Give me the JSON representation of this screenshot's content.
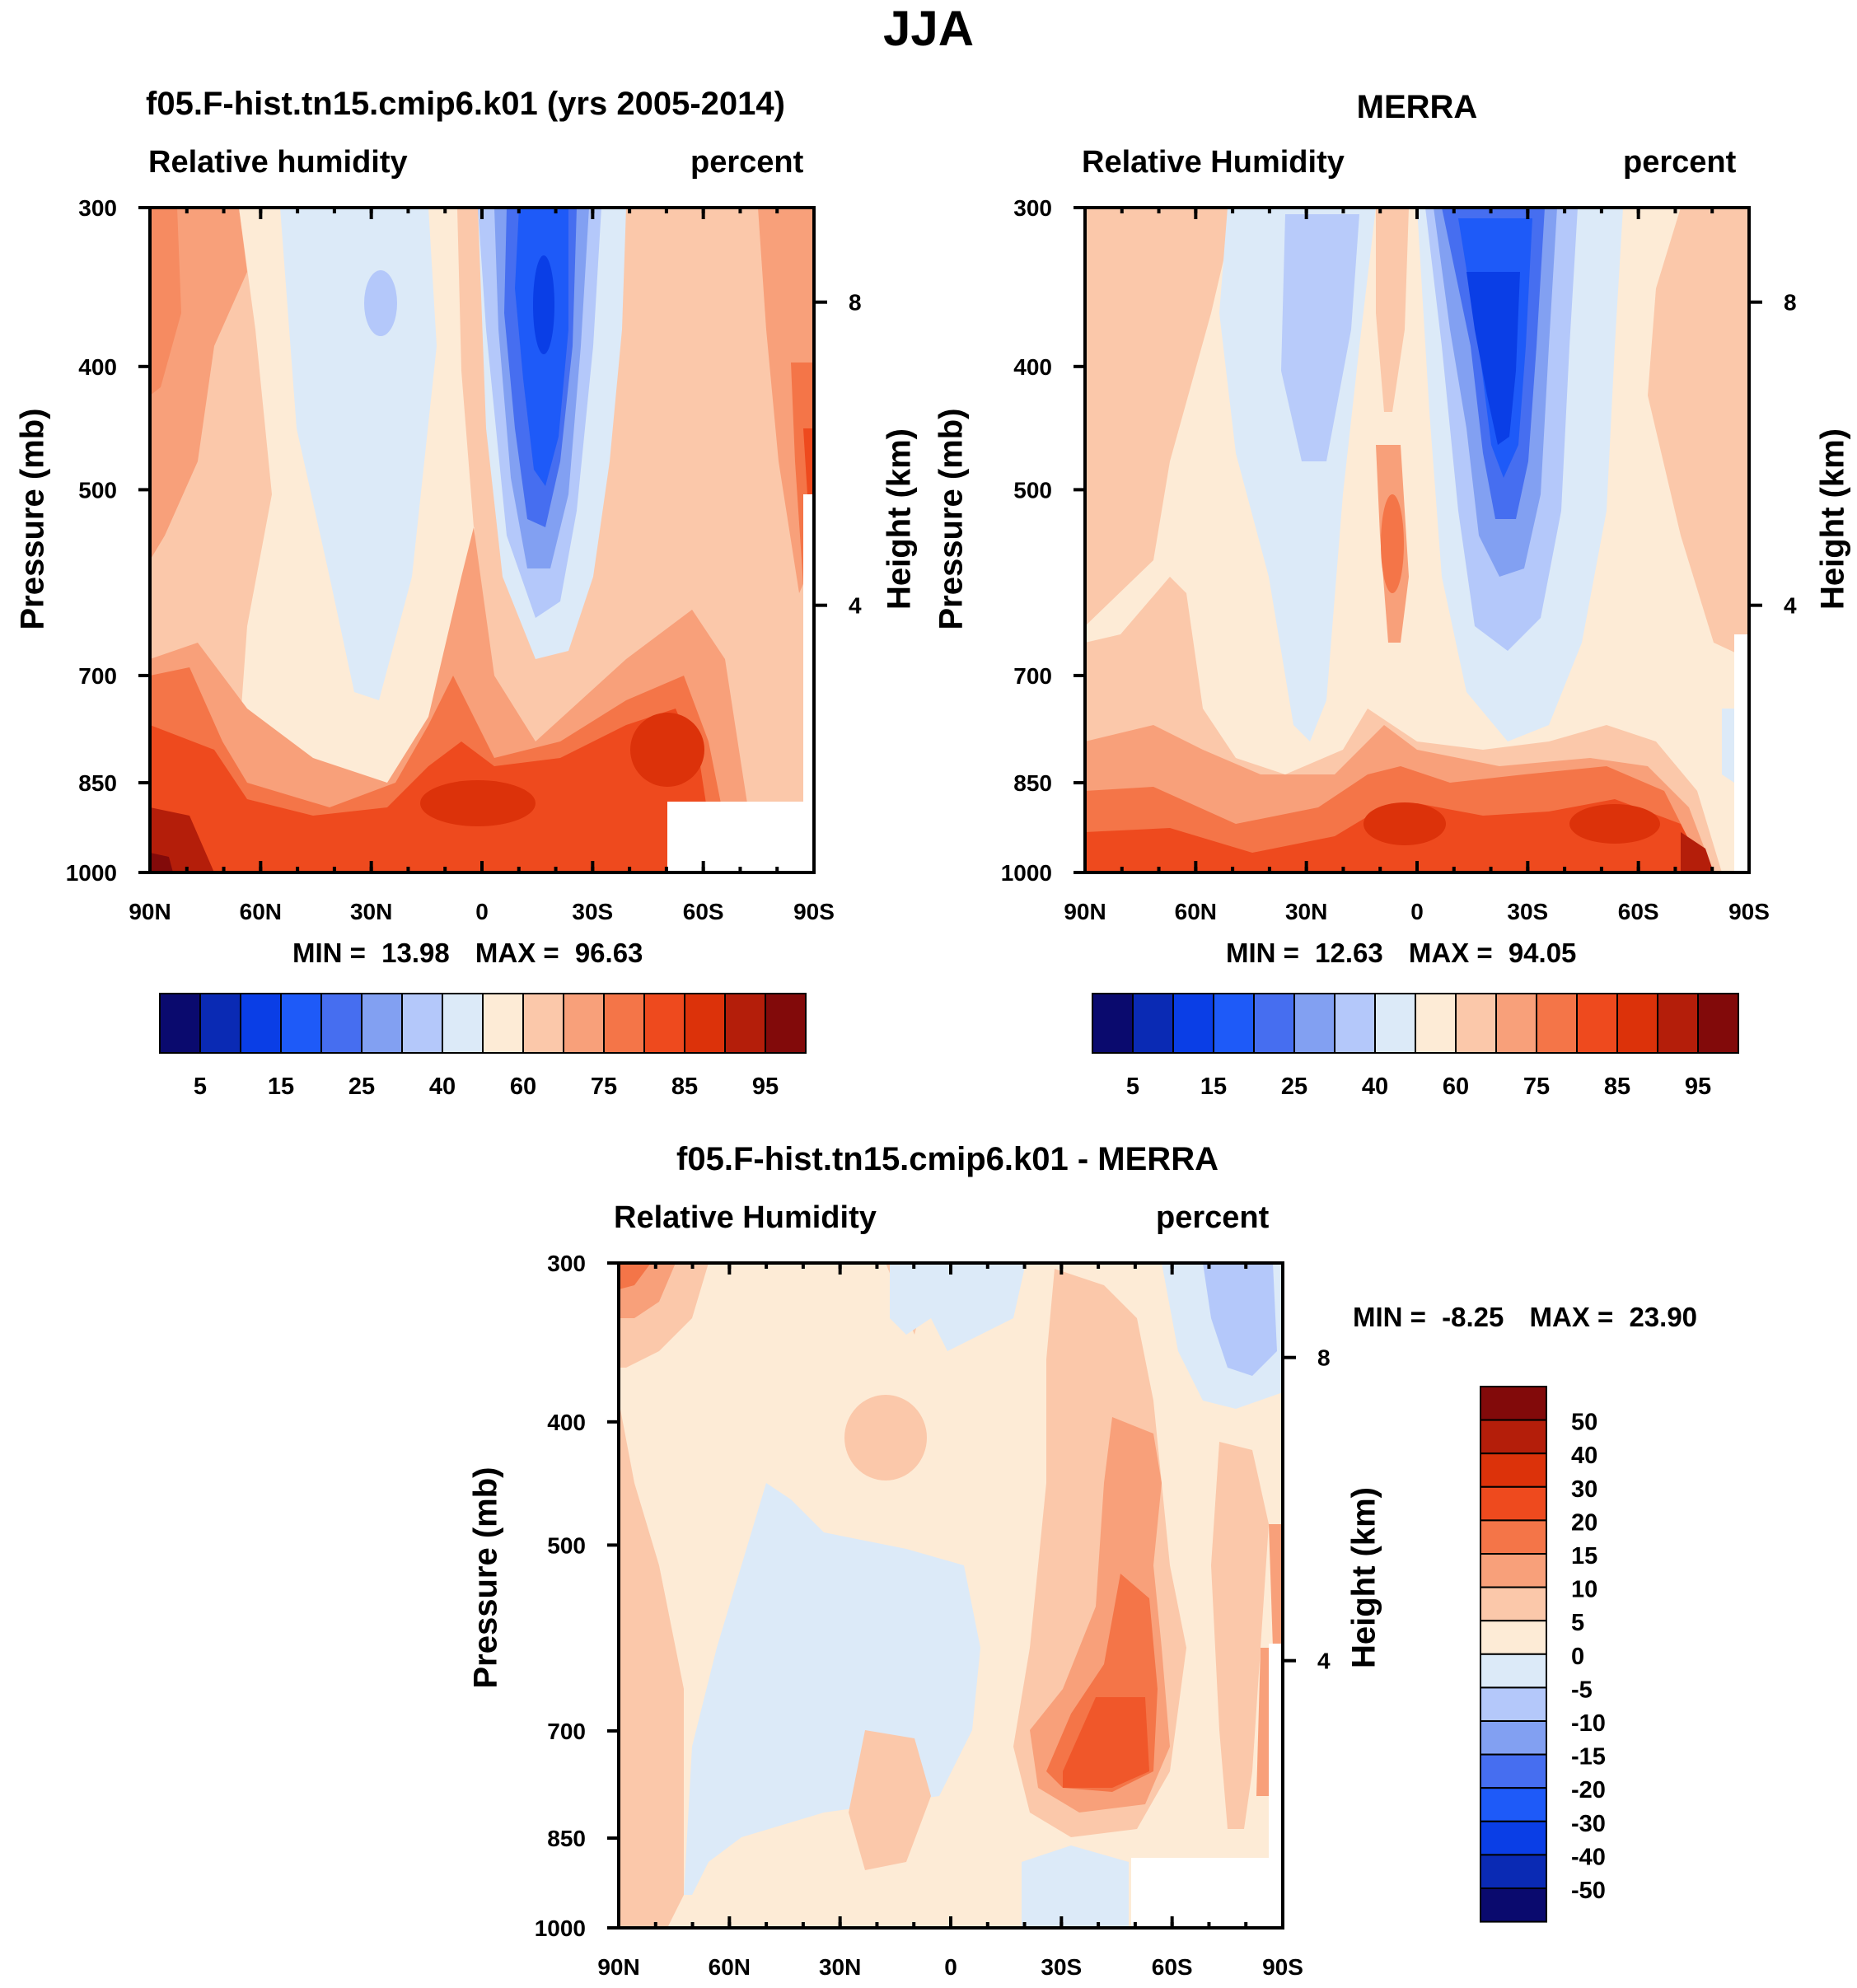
{
  "page_title": "JJA",
  "chart_data": [
    {
      "type": "heatmap",
      "title": "f05.F-hist.tn15.cmip6.k01 (yrs 2005-2014)",
      "variable": "Relative humidity",
      "units": "percent",
      "ylabel": "Pressure (mb)",
      "y2label": "Height (km)",
      "x_ticks": [
        "90N",
        "60N",
        "30N",
        "0",
        "30S",
        "60S",
        "90S"
      ],
      "y_ticks": [
        "300",
        "400",
        "500",
        "700",
        "850",
        "1000"
      ],
      "y2_ticks": [
        "8",
        "4"
      ],
      "x_range": [
        90,
        -90
      ],
      "y_range": [
        1000,
        300
      ],
      "y_scale": "log",
      "min_label": "MIN =",
      "min_value": "13.98",
      "max_label": "MAX =",
      "max_value": "96.63",
      "colorbar_labels": [
        "5",
        "15",
        "25",
        "40",
        "60",
        "75",
        "85",
        "95"
      ],
      "colorbar_colors": [
        "#0a0a6e",
        "#0a2ab4",
        "#0a3ee6",
        "#1e5af8",
        "#466ef0",
        "#82a0f2",
        "#b4c8fa",
        "#dceaf8",
        "#fdebd6",
        "#fbc8aa",
        "#f8a07a",
        "#f47548",
        "#ee4a1e",
        "#dc320a",
        "#b41e0a",
        "#820a0a"
      ]
    },
    {
      "type": "heatmap",
      "title": "MERRA",
      "variable": "Relative Humidity",
      "units": "percent",
      "ylabel": "Pressure (mb)",
      "y2label": "Height (km)",
      "x_ticks": [
        "90N",
        "60N",
        "30N",
        "0",
        "30S",
        "60S",
        "90S"
      ],
      "y_ticks": [
        "300",
        "400",
        "500",
        "700",
        "850",
        "1000"
      ],
      "y2_ticks": [
        "8",
        "4"
      ],
      "x_range": [
        90,
        -90
      ],
      "y_range": [
        1000,
        300
      ],
      "y_scale": "log",
      "min_label": "MIN =",
      "min_value": "12.63",
      "max_label": "MAX =",
      "max_value": "94.05",
      "colorbar_labels": [
        "5",
        "15",
        "25",
        "40",
        "60",
        "75",
        "85",
        "95"
      ],
      "colorbar_colors": [
        "#0a0a6e",
        "#0a2ab4",
        "#0a3ee6",
        "#1e5af8",
        "#466ef0",
        "#82a0f2",
        "#b4c8fa",
        "#dceaf8",
        "#fdebd6",
        "#fbc8aa",
        "#f8a07a",
        "#f47548",
        "#ee4a1e",
        "#dc320a",
        "#b41e0a",
        "#820a0a"
      ]
    },
    {
      "type": "heatmap",
      "title": "f05.F-hist.tn15.cmip6.k01 - MERRA",
      "variable": "Relative Humidity",
      "units": "percent",
      "ylabel": "Pressure (mb)",
      "y2label": "Height (km)",
      "x_ticks": [
        "90N",
        "60N",
        "30N",
        "0",
        "30S",
        "60S",
        "90S"
      ],
      "y_ticks": [
        "300",
        "400",
        "500",
        "700",
        "850",
        "1000"
      ],
      "y2_ticks": [
        "8",
        "4"
      ],
      "x_range": [
        90,
        -90
      ],
      "y_range": [
        1000,
        300
      ],
      "y_scale": "log",
      "min_label": "MIN =",
      "min_value": "-8.25",
      "max_label": "MAX =",
      "max_value": "23.90",
      "colorbar_labels": [
        "50",
        "40",
        "30",
        "20",
        "15",
        "10",
        "5",
        "0",
        "-5",
        "-10",
        "-15",
        "-20",
        "-30",
        "-40",
        "-50"
      ],
      "colorbar_colors": [
        "#820a0a",
        "#b41e0a",
        "#dc320a",
        "#ee4a1e",
        "#f47548",
        "#f8a07a",
        "#fbc8aa",
        "#fdebd6",
        "#dceaf8",
        "#b4c8fa",
        "#82a0f2",
        "#466ef0",
        "#1e5af8",
        "#0a3ee6",
        "#0a2ab4",
        "#0a0a6e"
      ]
    }
  ]
}
